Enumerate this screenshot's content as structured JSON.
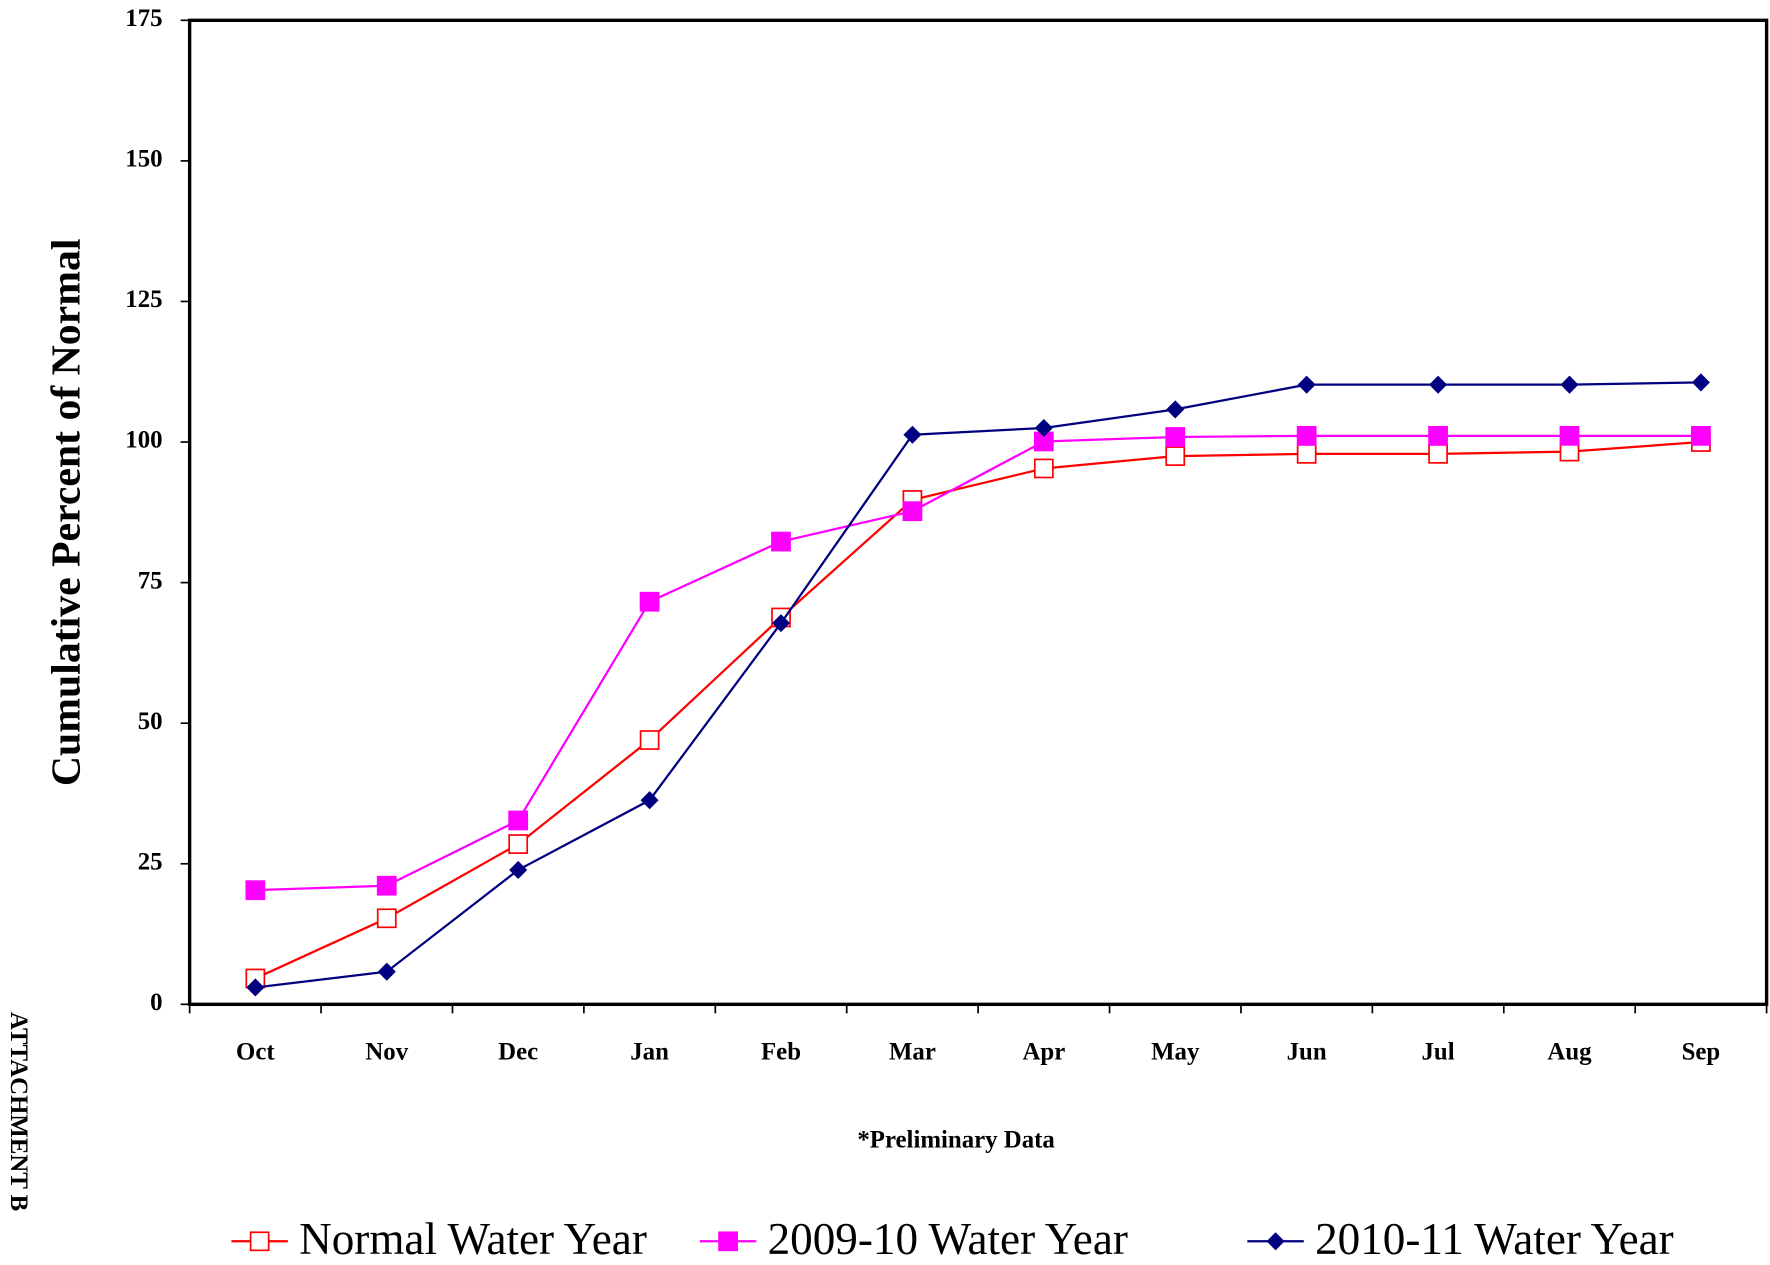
{
  "chart_data": {
    "type": "line",
    "y_label": "Cumulative Percent of Normal",
    "x_label": "*Preliminary Data",
    "side_label": "ATTACHMENT B",
    "categories": [
      "Oct",
      "Nov",
      "Dec",
      "Jan",
      "Feb",
      "Mar",
      "Apr",
      "May",
      "Jun",
      "Jul",
      "Aug",
      "Sep"
    ],
    "series": [
      {
        "name": "Normal Water Year",
        "color": "#ff0000",
        "marker": "open-square",
        "values": [
          4.6,
          15.3,
          28.5,
          47,
          68.8,
          89.7,
          95.3,
          97.5,
          97.9,
          97.9,
          98.3,
          100
        ]
      },
      {
        "name": "2009-10 Water Year",
        "color": "#ff00ff",
        "marker": "filled-square",
        "values": [
          20.3,
          21.1,
          32.7,
          71.6,
          82.3,
          87.7,
          100.1,
          100.9,
          101.1,
          101.1,
          101.1,
          101.1
        ]
      },
      {
        "name": "2010-11 Water Year",
        "color": "#000080",
        "marker": "diamond",
        "values": [
          3,
          5.8,
          23.9,
          36.3,
          67.8,
          101.3,
          102.5,
          105.8,
          110.2,
          110.2,
          110.2,
          110.6
        ]
      }
    ],
    "ylim": [
      0,
      175
    ],
    "yticks": [
      0,
      25,
      50,
      75,
      100,
      125,
      150,
      175
    ],
    "grid": false,
    "legend": "bottom"
  }
}
